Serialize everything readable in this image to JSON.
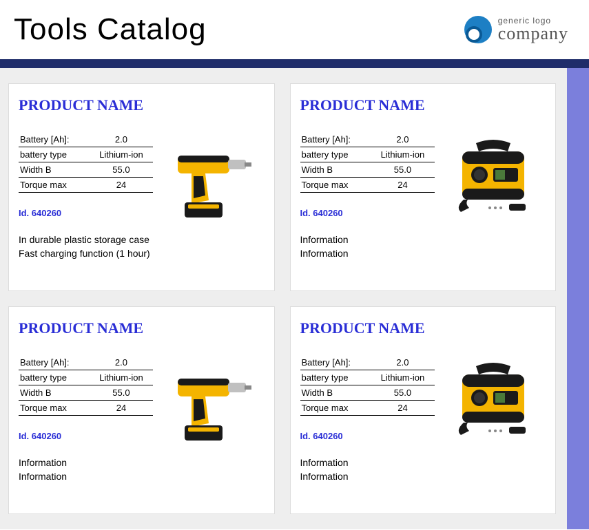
{
  "header": {
    "title": "Tools Catalog",
    "logo_top": "generic logo",
    "logo_bottom": "company"
  },
  "colors": {
    "bar": "#1f2d6a",
    "side_strip": "#7b7fdc",
    "page_bg": "#eeeeee",
    "card_bg": "#ffffff",
    "title_color": "#000000",
    "product_name_color": "#2a2ed6",
    "spec_border": "#000000"
  },
  "cards": [
    {
      "name": "PRODUCT NAME",
      "image_kind": "drill",
      "specs": [
        {
          "label": "Battery [Ah]:",
          "value": "2.0"
        },
        {
          "label": "battery type",
          "value": "Lithium-ion"
        },
        {
          "label": "Width B",
          "value": "55.0"
        },
        {
          "label": "Torque max",
          "value": "24"
        }
      ],
      "id_label": "Id. 640260",
      "info": [
        "In durable plastic storage case",
        "Fast charging function (1 hour)"
      ]
    },
    {
      "name": "PRODUCT NAME",
      "image_kind": "welder",
      "specs": [
        {
          "label": "Battery [Ah]:",
          "value": "2.0"
        },
        {
          "label": "battery type",
          "value": "Lithium-ion"
        },
        {
          "label": "Width B",
          "value": "55.0"
        },
        {
          "label": "Torque max",
          "value": "24"
        }
      ],
      "id_label": "Id. 640260",
      "info": [
        "Information",
        "Information"
      ]
    },
    {
      "name": "PRODUCT NAME",
      "image_kind": "drill",
      "specs": [
        {
          "label": "Battery [Ah]:",
          "value": "2.0"
        },
        {
          "label": "battery type",
          "value": "Lithium-ion"
        },
        {
          "label": "Width B",
          "value": "55.0"
        },
        {
          "label": "Torque max",
          "value": "24"
        }
      ],
      "id_label": "Id. 640260",
      "info": [
        "Information",
        "Information"
      ]
    },
    {
      "name": "PRODUCT NAME",
      "image_kind": "welder",
      "specs": [
        {
          "label": "Battery [Ah]:",
          "value": "2.0"
        },
        {
          "label": "battery type",
          "value": "Lithium-ion"
        },
        {
          "label": "Width B",
          "value": "55.0"
        },
        {
          "label": "Torque max",
          "value": "24"
        }
      ],
      "id_label": "Id. 640260",
      "info": [
        "Information",
        "Information"
      ]
    }
  ]
}
